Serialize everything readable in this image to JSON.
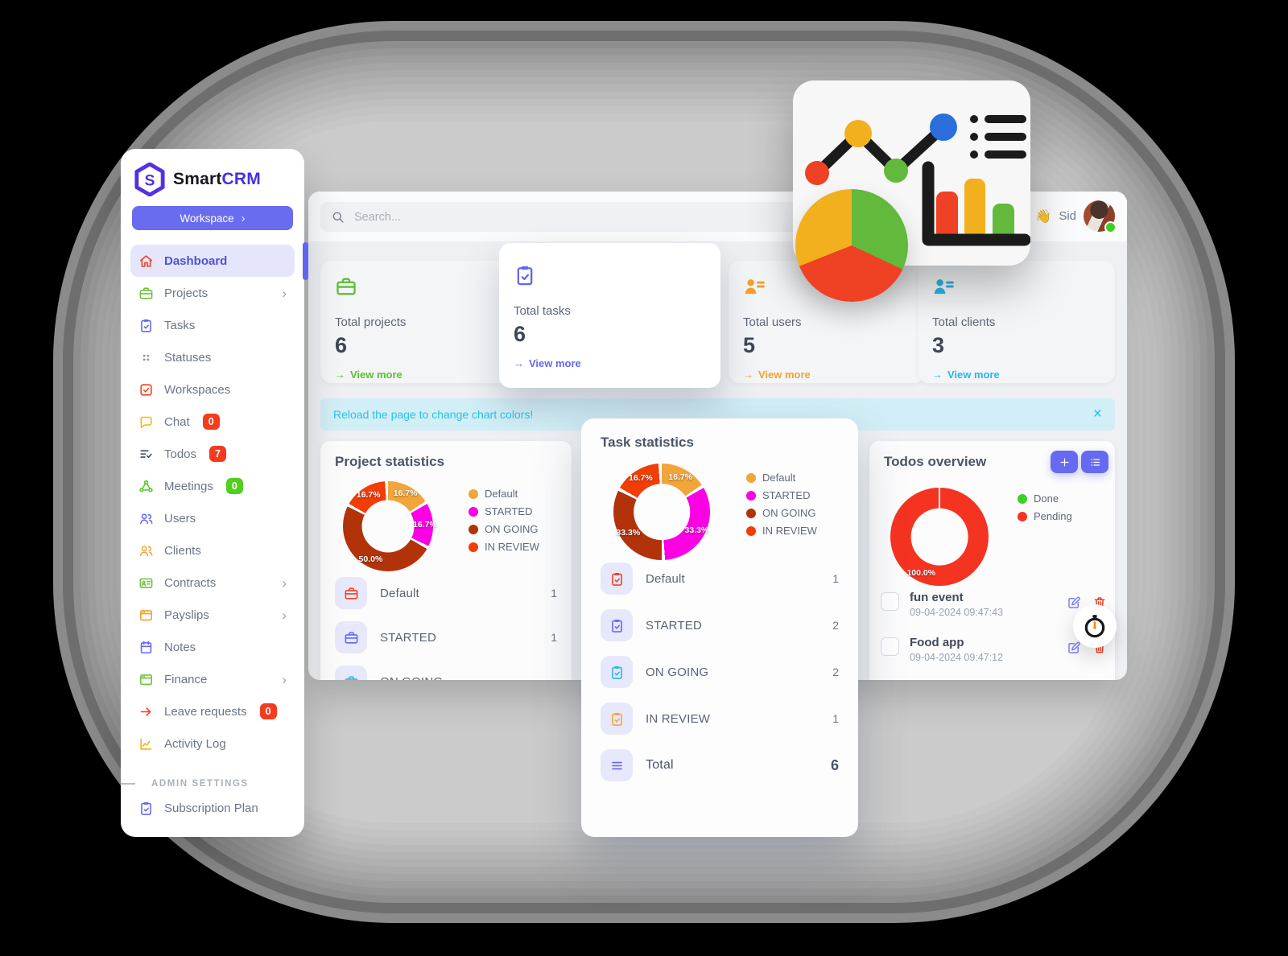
{
  "brand": {
    "smart": "Smart",
    "crm": "CRM"
  },
  "workspace": {
    "label": "Workspace",
    "chevron": "›"
  },
  "sidebar": {
    "items": [
      {
        "label": "Dashboard",
        "icon": "home",
        "color": "#ef4123",
        "active": true
      },
      {
        "label": "Projects",
        "icon": "briefcase",
        "color": "#6ec33f",
        "chevron": true
      },
      {
        "label": "Tasks",
        "icon": "clipboard",
        "color": "#6467f2"
      },
      {
        "label": "Statuses",
        "icon": "grid",
        "color": "#8a93a3"
      },
      {
        "label": "Workspaces",
        "icon": "checksquare",
        "color": "#ef4123"
      },
      {
        "label": "Chat",
        "icon": "chat",
        "color": "#f7b819",
        "badge": "0",
        "badge_color": "#f43b1e"
      },
      {
        "label": "Todos",
        "icon": "listcheck",
        "color": "#3f4a5a",
        "badge": "7",
        "badge_color": "#f43b1e"
      },
      {
        "label": "Meetings",
        "icon": "network",
        "color": "#55cb23",
        "badge": "0",
        "badge_color": "#52ce1f"
      },
      {
        "label": "Users",
        "icon": "users",
        "color": "#6467f2"
      },
      {
        "label": "Clients",
        "icon": "users",
        "color": "#f5a12c"
      },
      {
        "label": "Contracts",
        "icon": "idcard",
        "color": "#6ec33f",
        "chevron": true
      },
      {
        "label": "Payslips",
        "icon": "window",
        "color": "#f5a12c",
        "chevron": true
      },
      {
        "label": "Notes",
        "icon": "calendar",
        "color": "#6467f2"
      },
      {
        "label": "Finance",
        "icon": "window",
        "color": "#6ec33f",
        "chevron": true
      },
      {
        "label": "Leave requests",
        "icon": "arrowright",
        "color": "#f43b1e",
        "badge": "0",
        "badge_color": "#f43b1e"
      },
      {
        "label": "Activity Log",
        "icon": "activity",
        "color": "#f2b01e"
      }
    ],
    "section_header": "ADMIN SETTINGS",
    "admin_items": [
      {
        "label": "Subscription Plan",
        "icon": "clipboard",
        "color": "#6467f2"
      }
    ]
  },
  "topbar": {
    "search_placeholder": "Search...",
    "wave": "👋",
    "user_name": "Sid"
  },
  "stat_cards": [
    {
      "title": "Total projects",
      "value": "6",
      "arrow": "→",
      "link": "View more",
      "color": "#5cc033",
      "icon": "briefcase",
      "elevated": false
    },
    {
      "title": "Total tasks",
      "value": "6",
      "arrow": "→",
      "link": "View more",
      "color": "#6467f2",
      "icon": "clipboard",
      "elevated": true
    },
    {
      "title": "Total users",
      "value": "5",
      "arrow": "→",
      "link": "View more",
      "color": "#f5a12c",
      "icon": "userlines",
      "elevated": false
    },
    {
      "title": "Total clients",
      "value": "3",
      "arrow": "→",
      "link": "View more",
      "color": "#29b6e8",
      "icon": "userlines",
      "elevated": false
    }
  ],
  "alert": {
    "text": "Reload the page to change chart colors!",
    "close": "×"
  },
  "chart_data": [
    {
      "type": "pie",
      "donut": true,
      "title": "Project statistics",
      "labels": [
        "Default",
        "STARTED",
        "ON GOING",
        "IN REVIEW"
      ],
      "values": [
        16.7,
        16.7,
        50.0,
        16.7
      ],
      "slice_labels": [
        "16.7%",
        "16.7%",
        "50.0%",
        "16.7%"
      ],
      "colors": [
        "#f2a53a",
        "#fb00e3",
        "#b23209",
        "#f23d07"
      ],
      "legend_position": "right"
    },
    {
      "type": "pie",
      "donut": true,
      "title": "Task statistics",
      "labels": [
        "Default",
        "STARTED",
        "ON GOING",
        "IN REVIEW"
      ],
      "values": [
        16.7,
        33.3,
        33.3,
        16.7
      ],
      "slice_labels": [
        "16.7%",
        "33.3%",
        "33.3%",
        "16.7%"
      ],
      "colors": [
        "#f2a53a",
        "#fb00e3",
        "#b23209",
        "#f23d07"
      ],
      "legend_position": "right"
    },
    {
      "type": "pie",
      "donut": true,
      "title": "Todos overview",
      "labels": [
        "Done",
        "Pending"
      ],
      "values": [
        0,
        100
      ],
      "slice_labels": [
        "",
        "100.0%"
      ],
      "colors": [
        "#3ecf25",
        "#f53321"
      ],
      "legend_position": "right"
    }
  ],
  "project_stats": {
    "title": "Project statistics",
    "rows": [
      {
        "label": "Default",
        "count": "1",
        "color": "#ef4123"
      },
      {
        "label": "STARTED",
        "count": "1",
        "color": "#6467f2"
      },
      {
        "label": "ON GOING",
        "count": "",
        "color": "#29b6e8"
      }
    ]
  },
  "task_stats": {
    "title": "Task statistics",
    "rows": [
      {
        "label": "Default",
        "count": "1",
        "color": "#ef4123"
      },
      {
        "label": "STARTED",
        "count": "2",
        "color": "#6467f2"
      },
      {
        "label": "ON GOING",
        "count": "2",
        "color": "#29b6e8"
      },
      {
        "label": "IN REVIEW",
        "count": "1",
        "color": "#f2a53a"
      }
    ],
    "total": {
      "label": "Total",
      "count": "6"
    }
  },
  "todos": {
    "title": "Todos overview",
    "items": [
      {
        "title": "fun event",
        "timestamp": "09-04-2024 09:47:43"
      },
      {
        "title": "Food app",
        "timestamp": "09-04-2024 09:47:12"
      }
    ]
  }
}
